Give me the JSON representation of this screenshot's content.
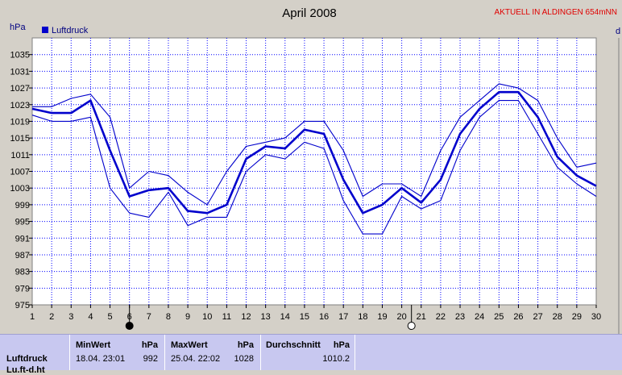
{
  "header": {
    "title": "April 2008",
    "station": "AKTUELL IN ALDINGEN 654mNN",
    "unit_left": "hPa",
    "unit_right_partial": "d"
  },
  "colors": {
    "series": "#0000cc",
    "grid": "#0000ff",
    "station": "#e00000",
    "plot_bg": "#ffffff",
    "page_bg": "#d4d0c8",
    "stats_bg": "#c8c8f0"
  },
  "chart_data": {
    "type": "line",
    "title": "April 2008",
    "ylabel": "hPa",
    "xlabel": "",
    "legend": {
      "entries": [
        "Luftdruck"
      ],
      "placement": "top-left"
    },
    "grid": true,
    "xlim": [
      1,
      30
    ],
    "ylim": [
      975,
      1039
    ],
    "x_ticks": [
      1,
      2,
      3,
      4,
      5,
      6,
      7,
      8,
      9,
      10,
      11,
      12,
      13,
      14,
      15,
      16,
      17,
      18,
      19,
      20,
      21,
      22,
      23,
      24,
      25,
      26,
      27,
      28,
      29,
      30
    ],
    "y_ticks": [
      975,
      979,
      983,
      987,
      991,
      995,
      999,
      1003,
      1007,
      1011,
      1015,
      1019,
      1023,
      1027,
      1031,
      1035
    ],
    "x": [
      1,
      2,
      3,
      4,
      5,
      6,
      7,
      8,
      9,
      10,
      11,
      12,
      13,
      14,
      15,
      16,
      17,
      18,
      19,
      20,
      21,
      22,
      23,
      24,
      25,
      26,
      27,
      28,
      29,
      30
    ],
    "series": [
      {
        "name": "Luftdruck",
        "role": "mean",
        "values": [
          1022,
          1021,
          1021,
          1024,
          1012,
          1001,
          1002.5,
          1003,
          997.5,
          997,
          999,
          1010,
          1013,
          1012.5,
          1017,
          1016,
          1005,
          997,
          999,
          1003,
          999.5,
          1005,
          1016,
          1022,
          1026,
          1026,
          1020,
          1010.5,
          1006,
          1003.5
        ]
      },
      {
        "name": "",
        "role": "max",
        "values": [
          1022.5,
          1022.5,
          1024.5,
          1025.5,
          1020,
          1003,
          1007,
          1006,
          1002,
          999,
          1007,
          1013,
          1014,
          1015,
          1019,
          1019,
          1012,
          1001,
          1004,
          1004,
          1001,
          1012,
          1020,
          1024,
          1028,
          1027,
          1024,
          1015,
          1008,
          1009
        ]
      },
      {
        "name": "",
        "role": "min",
        "values": [
          1020.5,
          1019,
          1019,
          1020,
          1003,
          997,
          996,
          1002,
          994,
          996,
          996,
          1007,
          1011,
          1010,
          1014,
          1012.5,
          1000,
          992,
          992,
          1001,
          998,
          1000,
          1012,
          1020,
          1024,
          1024,
          1016,
          1008,
          1004,
          1001
        ]
      }
    ],
    "moon_phases": [
      {
        "day": 6,
        "phase": "new"
      },
      {
        "day": 20.5,
        "phase": "full"
      }
    ]
  },
  "stats": {
    "row_label": "Luftdruck",
    "row_label_2": "Lu.ft-d.ht",
    "min": {
      "header": "MinWert",
      "unit": "hPa",
      "datetime": "18.04.  23:01",
      "value": "992"
    },
    "max": {
      "header": "MaxWert",
      "unit": "hPa",
      "datetime": "25.04.  22:02",
      "value": "1028"
    },
    "avg": {
      "header": "Durchschnitt",
      "unit": "hPa",
      "value": "1010.2"
    }
  }
}
